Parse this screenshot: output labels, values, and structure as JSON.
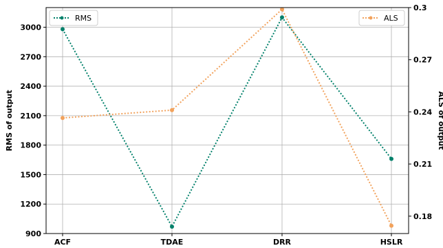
{
  "chart_data": {
    "type": "line",
    "categories": [
      "ACF",
      "TDAE",
      "DRR",
      "HSLR"
    ],
    "ylabel": "RMS of output",
    "y2label": "ALS of output",
    "ylim": [
      900,
      3200
    ],
    "y2lim": [
      0.17,
      0.3
    ],
    "yticks": [
      "900",
      "1200",
      "1500",
      "1800",
      "2100",
      "2400",
      "2700",
      "3000"
    ],
    "y2ticks": [
      "0.18",
      "0.21",
      "0.24",
      "0.27",
      "0.3"
    ],
    "grid": true,
    "series": [
      {
        "name": "RMS",
        "axis": "left",
        "color": "#00806a",
        "style": "dotted",
        "values": [
          2980,
          970,
          3100,
          1660
        ]
      },
      {
        "name": "ALS",
        "axis": "right",
        "color": "#f2a25c",
        "style": "dotted",
        "values": [
          0.2365,
          0.241,
          0.299,
          0.1745
        ]
      }
    ],
    "legend": [
      {
        "name": "RMS",
        "placement": "top-left"
      },
      {
        "name": "ALS",
        "placement": "top-right"
      }
    ]
  }
}
